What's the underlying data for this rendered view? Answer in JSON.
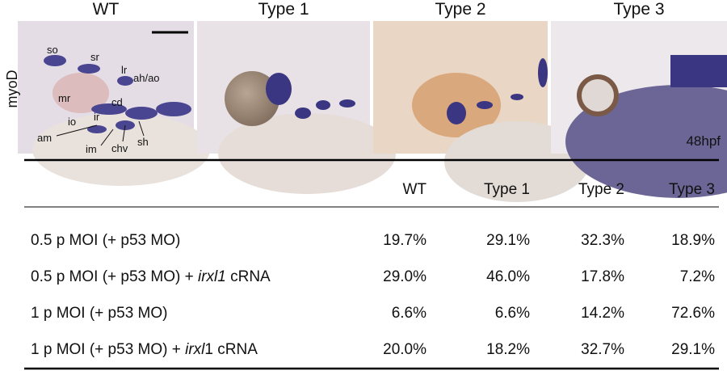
{
  "figure": {
    "column_titles": [
      "WT",
      "Type 1",
      "Type 2",
      "Type 3"
    ],
    "row_label": "myoD",
    "stage": "48hpf",
    "annotations": [
      "so",
      "sr",
      "lr",
      "ah/ao",
      "mr",
      "cd",
      "io",
      "ir",
      "am",
      "im",
      "chv",
      "sh"
    ]
  },
  "table": {
    "header": [
      "WT",
      "Type 1",
      "Type 2",
      "Type 3"
    ],
    "rows": [
      {
        "label": [
          "0.5 p MOI (+ p53 MO)"
        ],
        "values": [
          "19.7%",
          "29.1%",
          "32.3%",
          "18.9%"
        ]
      },
      {
        "label": [
          "0.5 p MOI (+ p53 MO) + ",
          "irxl1",
          " cRNA"
        ],
        "values": [
          "29.0%",
          "46.0%",
          "17.8%",
          "7.2%"
        ]
      },
      {
        "label": [
          "1 p MOI (+ p53 MO)"
        ],
        "values": [
          "6.6%",
          "6.6%",
          "14.2%",
          "72.6%"
        ]
      },
      {
        "label": [
          "1 p MOI (+ p53 MO) + ",
          "irxl",
          "1 cRNA"
        ],
        "values": [
          "20.0%",
          "18.2%",
          "32.7%",
          "29.1%"
        ]
      }
    ]
  }
}
